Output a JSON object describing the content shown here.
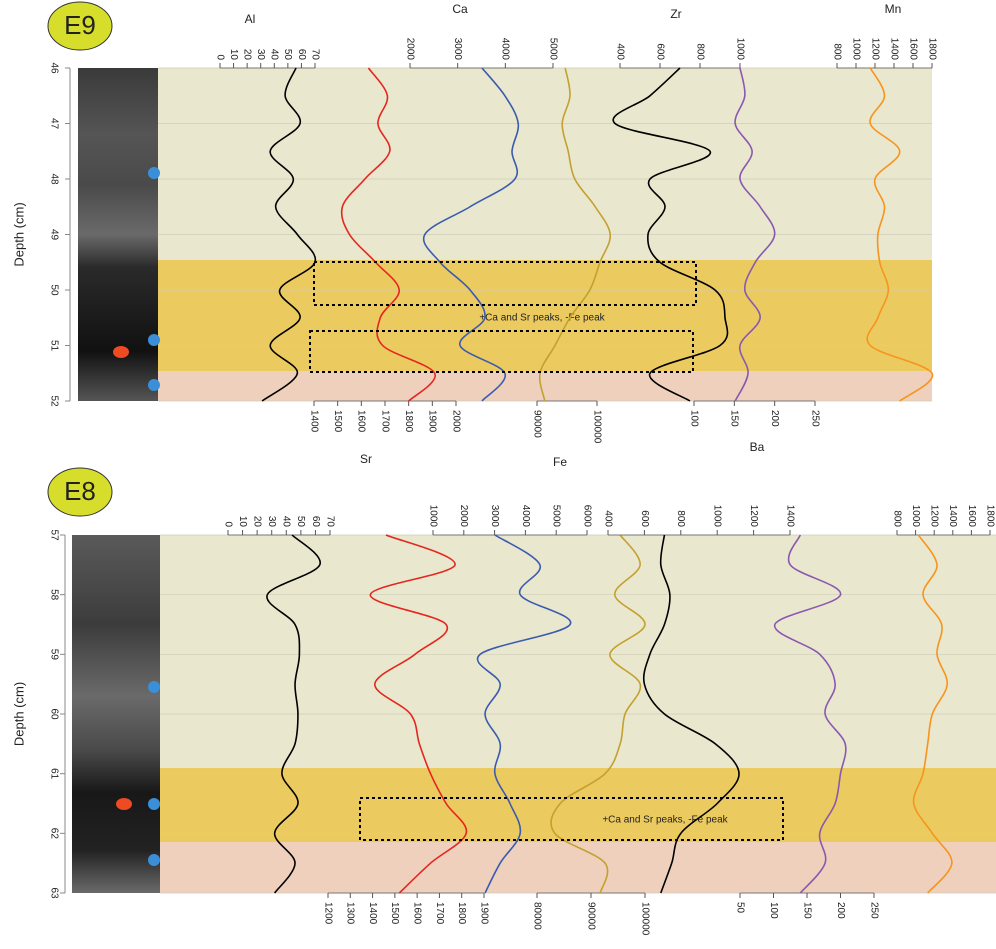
{
  "chart_data": [
    {
      "type": "line",
      "title": "E9",
      "ylabel": "Depth (cm)",
      "ylim": [
        46,
        52
      ],
      "yticks": [
        46,
        47,
        48,
        49,
        50,
        51,
        52
      ],
      "grid": true,
      "annotation": "+Ca and Sr peaks, -Fe peak",
      "y": [
        46,
        46.5,
        47,
        47.5,
        48,
        48.5,
        49,
        49.5,
        50,
        50.5,
        51,
        51.5,
        52
      ],
      "series": [
        {
          "name": "Al",
          "color": "#000000",
          "axis_side": "top",
          "xlim": [
            0,
            70
          ],
          "xticks": [
            0,
            10,
            20,
            30,
            40,
            50,
            60,
            70
          ],
          "values": [
            56,
            48,
            59,
            37,
            54,
            41,
            57,
            70,
            44,
            59,
            37,
            57,
            31
          ]
        },
        {
          "name": "Sr",
          "color": "#e5261f",
          "axis_side": "bottom",
          "xlim": [
            1400,
            2000
          ],
          "xticks": [
            1400,
            1500,
            1600,
            1700,
            1800,
            1900,
            2000
          ],
          "values": [
            1630,
            1710,
            1670,
            1720,
            1615,
            1520,
            1550,
            1660,
            1760,
            1680,
            1690,
            1910,
            1800
          ]
        },
        {
          "name": "Ca",
          "color": "#3a5bb0",
          "axis_side": "top",
          "xlim": [
            2000,
            5000
          ],
          "xticks": [
            2000,
            3000,
            4000,
            5000
          ],
          "values": [
            3510,
            3990,
            4270,
            4140,
            4200,
            3260,
            2310,
            2630,
            3260,
            3570,
            3050,
            3990,
            3510
          ]
        },
        {
          "name": "Fe",
          "color": "#c4a02e",
          "axis_side": "bottom",
          "xlim": [
            90000,
            100000
          ],
          "xticks": [
            90000,
            100000
          ],
          "values": [
            94700,
            95500,
            94200,
            95200,
            96300,
            99700,
            102200,
            100500,
            98800,
            95500,
            93000,
            90500,
            91300
          ]
        },
        {
          "name": "Zr",
          "color": "#000000",
          "axis_side": "top",
          "xlim": [
            400,
            1000
          ],
          "xticks": [
            400,
            600,
            800,
            1000
          ],
          "values": [
            700,
            550,
            375,
            850,
            550,
            625,
            540,
            600,
            875,
            925,
            900,
            550,
            750
          ]
        },
        {
          "name": "Ba",
          "color": "#8a58b0",
          "axis_side": "bottom",
          "xlim": [
            100,
            250
          ],
          "xticks": [
            100,
            150,
            200,
            250
          ],
          "values": [
            157,
            163,
            151,
            172,
            157,
            182,
            200,
            176,
            163,
            182,
            157,
            167,
            151
          ]
        },
        {
          "name": "Mn",
          "color": "#f7941d",
          "axis_side": "top",
          "xlim": [
            800,
            1800
          ],
          "xticks": [
            800,
            1000,
            1200,
            1400,
            1600,
            1800
          ],
          "values": [
            1150,
            1300,
            1150,
            1460,
            1200,
            1300,
            1230,
            1250,
            1340,
            1230,
            1150,
            1800,
            1460
          ]
        }
      ]
    },
    {
      "type": "line",
      "title": "E8",
      "ylabel": "Depth (cm)",
      "ylim": [
        57,
        63
      ],
      "yticks": [
        57,
        58,
        59,
        60,
        61,
        62,
        63
      ],
      "grid": true,
      "annotation": "+Ca and Sr peaks, -Fe peak",
      "y": [
        57,
        57.5,
        58,
        58.5,
        59,
        59.5,
        60,
        60.5,
        61,
        61.5,
        62,
        62.5,
        63
      ],
      "series": [
        {
          "color": "#000000",
          "axis_side": "top",
          "xlim": [
            0,
            70
          ],
          "xticks": [
            0,
            10,
            20,
            30,
            40,
            50,
            60,
            70
          ],
          "values": [
            44,
            63,
            27,
            46,
            49,
            46,
            48,
            46,
            37,
            48,
            32,
            46,
            32
          ]
        },
        {
          "color": "#e5261f",
          "axis_side": "bottom",
          "xlim": [
            1200,
            1900
          ],
          "xticks": [
            1200,
            1300,
            1400,
            1500,
            1600,
            1700,
            1800,
            1900
          ],
          "values": [
            1460,
            1770,
            1390,
            1730,
            1590,
            1410,
            1570,
            1610,
            1660,
            1730,
            1820,
            1660,
            1520
          ]
        },
        {
          "color": "#3a5bb0",
          "axis_side": "top",
          "xlim": [
            1000,
            6000
          ],
          "xticks": [
            1000,
            2000,
            3000,
            4000,
            5000,
            6000
          ],
          "values": [
            3010,
            4470,
            3830,
            5450,
            2530,
            3180,
            2690,
            3180,
            3010,
            3500,
            3830,
            3180,
            2690
          ]
        },
        {
          "color": "#c4a02e",
          "axis_side": "bottom",
          "xlim": [
            80000,
            100000
          ],
          "xticks": [
            80000,
            90000,
            100000
          ],
          "values": [
            95400,
            99100,
            94400,
            100000,
            93500,
            99100,
            96300,
            95400,
            92600,
            84300,
            83300,
            92600,
            91700
          ]
        },
        {
          "color": "#000000",
          "axis_side": "top",
          "xlim": [
            400,
            1400
          ],
          "xticks": [
            400,
            600,
            800,
            1000,
            1200,
            1400
          ],
          "values": [
            710,
            690,
            740,
            710,
            630,
            600,
            710,
            990,
            1120,
            1000,
            800,
            750,
            690
          ]
        },
        {
          "color": "#8a58b0",
          "axis_side": "bottom",
          "xlim": [
            50,
            250
          ],
          "xticks": [
            50,
            100,
            150,
            200,
            250
          ],
          "values": [
            140,
            125,
            200,
            102,
            169,
            192,
            177,
            207,
            200,
            192,
            169,
            177,
            140
          ]
        },
        {
          "color": "#f7941d",
          "axis_side": "top",
          "xlim": [
            800,
            1800
          ],
          "xticks": [
            800,
            1000,
            1200,
            1400,
            1600,
            1800
          ],
          "values": [
            1030,
            1230,
            1080,
            1280,
            1230,
            1340,
            1180,
            1130,
            1080,
            980,
            1180,
            1390,
            1130
          ]
        }
      ]
    }
  ]
}
